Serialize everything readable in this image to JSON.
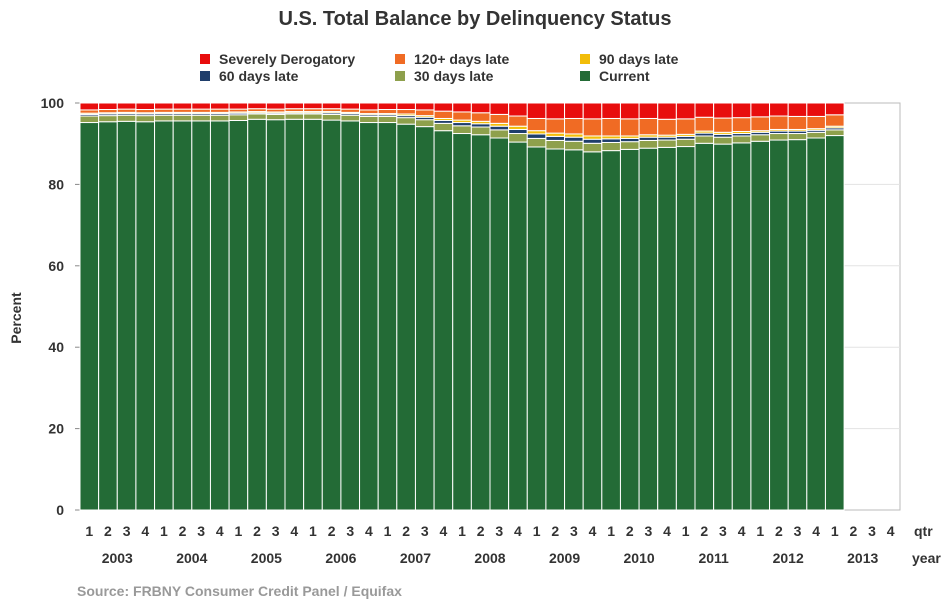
{
  "chart_data": {
    "type": "bar",
    "stacked": true,
    "title": "U.S. Total Balance by Delinquency Status",
    "ylabel": "Percent",
    "ylim": [
      0,
      100
    ],
    "yticks": [
      0,
      20,
      40,
      60,
      80,
      100
    ],
    "grid": true,
    "legend_position": "top",
    "source": "Source: FRBNY  Consumer Credit Panel / Equifax",
    "x_axis": {
      "quarter_label": "qtr",
      "year_label": "year",
      "quarters": [
        "1",
        "2",
        "3",
        "4"
      ],
      "years": [
        "2003",
        "2004",
        "2005",
        "2006",
        "2007",
        "2008",
        "2009",
        "2010",
        "2011",
        "2012",
        "2013"
      ]
    },
    "categories": [
      "2003 Q1",
      "2003 Q2",
      "2003 Q3",
      "2003 Q4",
      "2004 Q1",
      "2004 Q2",
      "2004 Q3",
      "2004 Q4",
      "2005 Q1",
      "2005 Q2",
      "2005 Q3",
      "2005 Q4",
      "2006 Q1",
      "2006 Q2",
      "2006 Q3",
      "2006 Q4",
      "2007 Q1",
      "2007 Q2",
      "2007 Q3",
      "2007 Q4",
      "2008 Q1",
      "2008 Q2",
      "2008 Q3",
      "2008 Q4",
      "2009 Q1",
      "2009 Q2",
      "2009 Q3",
      "2009 Q4",
      "2010 Q1",
      "2010 Q2",
      "2010 Q3",
      "2010 Q4",
      "2011 Q1",
      "2011 Q2",
      "2011 Q3",
      "2011 Q4",
      "2012 Q1",
      "2012 Q2",
      "2012 Q3",
      "2012 Q4",
      "2013 Q1",
      "2013 Q2",
      "2013 Q3",
      "2013 Q4"
    ],
    "series": [
      {
        "name": "Current",
        "color": "#236b36",
        "values": [
          95.2,
          95.4,
          95.5,
          95.4,
          95.6,
          95.6,
          95.6,
          95.6,
          95.7,
          96.0,
          95.9,
          96.0,
          96.0,
          95.8,
          95.6,
          95.2,
          95.2,
          94.8,
          94.2,
          93.2,
          92.5,
          92.2,
          91.4,
          90.4,
          89.2,
          88.7,
          88.5,
          88.0,
          88.3,
          88.6,
          88.9,
          89.1,
          89.3,
          90.1,
          89.9,
          90.2,
          90.6,
          90.9,
          91.0,
          91.4,
          92.0,
          null,
          null,
          null
        ]
      },
      {
        "name": "30 days late",
        "color": "#8ea04c",
        "values": [
          1.6,
          1.5,
          1.5,
          1.5,
          1.4,
          1.4,
          1.4,
          1.4,
          1.4,
          1.3,
          1.3,
          1.3,
          1.3,
          1.4,
          1.4,
          1.5,
          1.5,
          1.6,
          1.7,
          1.8,
          1.9,
          1.9,
          2.0,
          2.1,
          2.1,
          2.1,
          2.1,
          2.1,
          2.0,
          1.9,
          1.9,
          1.8,
          1.8,
          1.8,
          1.7,
          1.7,
          1.6,
          1.6,
          1.5,
          1.4,
          1.4,
          null,
          null,
          null
        ]
      },
      {
        "name": "60 days late",
        "color": "#1f3e6b",
        "values": [
          0.4,
          0.4,
          0.4,
          0.4,
          0.4,
          0.4,
          0.4,
          0.4,
          0.4,
          0.3,
          0.3,
          0.3,
          0.3,
          0.4,
          0.4,
          0.4,
          0.4,
          0.5,
          0.6,
          0.7,
          0.8,
          0.8,
          0.9,
          1.0,
          1.1,
          1.0,
          1.0,
          1.0,
          0.9,
          0.8,
          0.8,
          0.7,
          0.7,
          0.7,
          0.7,
          0.6,
          0.6,
          0.6,
          0.6,
          0.5,
          0.5,
          null,
          null,
          null
        ]
      },
      {
        "name": "90 days late",
        "color": "#f2bd09",
        "values": [
          0.3,
          0.3,
          0.3,
          0.3,
          0.3,
          0.3,
          0.3,
          0.3,
          0.3,
          0.3,
          0.3,
          0.3,
          0.3,
          0.3,
          0.3,
          0.3,
          0.3,
          0.4,
          0.4,
          0.5,
          0.6,
          0.6,
          0.7,
          0.8,
          0.8,
          0.8,
          0.8,
          0.8,
          0.7,
          0.6,
          0.6,
          0.5,
          0.5,
          0.5,
          0.5,
          0.5,
          0.4,
          0.4,
          0.4,
          0.4,
          0.4,
          null,
          null,
          null
        ]
      },
      {
        "name": "120+ days late",
        "color": "#f06b24",
        "values": [
          0.8,
          0.8,
          0.8,
          0.8,
          0.8,
          0.8,
          0.8,
          0.8,
          0.7,
          0.7,
          0.7,
          0.7,
          0.7,
          0.7,
          0.8,
          0.9,
          1.0,
          1.1,
          1.4,
          1.8,
          2.0,
          2.1,
          2.2,
          2.5,
          3.0,
          3.5,
          3.8,
          4.2,
          4.3,
          4.2,
          4.0,
          3.9,
          3.8,
          3.4,
          3.5,
          3.4,
          3.4,
          3.3,
          3.2,
          3.0,
          2.8,
          null,
          null,
          null
        ]
      },
      {
        "name": "Severely Derogatory",
        "color": "#e80d0d",
        "values": [
          1.7,
          1.6,
          1.5,
          1.6,
          1.5,
          1.5,
          1.5,
          1.5,
          1.5,
          1.4,
          1.5,
          1.4,
          1.4,
          1.4,
          1.5,
          1.7,
          1.6,
          1.6,
          1.7,
          2.0,
          2.2,
          2.4,
          2.8,
          3.2,
          3.8,
          3.9,
          3.8,
          3.9,
          3.8,
          3.9,
          3.8,
          4.0,
          3.9,
          3.5,
          3.7,
          3.6,
          3.4,
          3.2,
          3.3,
          3.3,
          2.9,
          null,
          null,
          null
        ]
      }
    ],
    "legend": [
      {
        "name": "Severely Derogatory",
        "color": "#e80d0d"
      },
      {
        "name": "120+ days late",
        "color": "#f06b24"
      },
      {
        "name": "90 days late",
        "color": "#f2bd09"
      },
      {
        "name": "60 days late",
        "color": "#1f3e6b"
      },
      {
        "name": "30 days late",
        "color": "#8ea04c"
      },
      {
        "name": "Current",
        "color": "#236b36"
      }
    ]
  }
}
